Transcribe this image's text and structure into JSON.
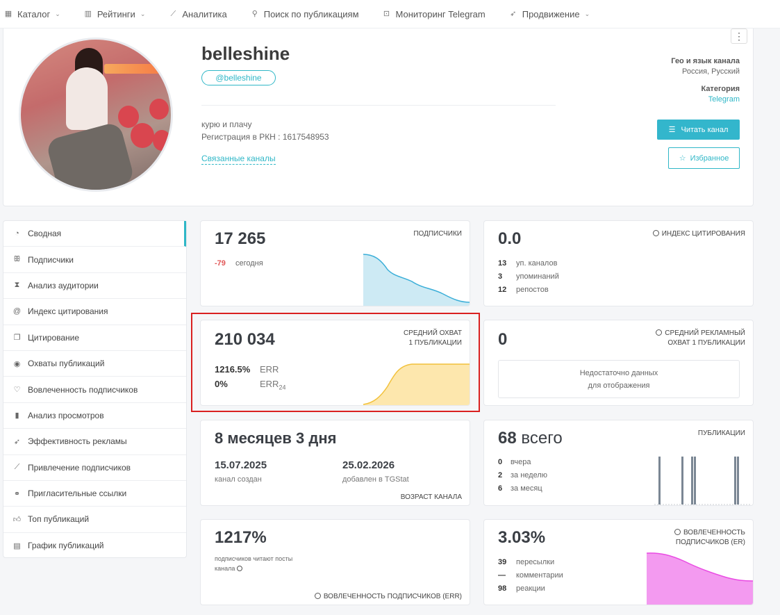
{
  "nav": {
    "items": [
      {
        "icon": "grid-icon",
        "label": "Каталог",
        "dropdown": true
      },
      {
        "icon": "rating-icon",
        "label": "Рейтинги",
        "dropdown": true
      },
      {
        "icon": "chart-icon",
        "label": "Аналитика",
        "dropdown": false
      },
      {
        "icon": "search-icon",
        "label": "Поиск по публикациям",
        "dropdown": false
      },
      {
        "icon": "monitor-icon",
        "label": "Мониторинг Telegram",
        "dropdown": false
      },
      {
        "icon": "rocket-icon",
        "label": "Продвижение",
        "dropdown": true
      }
    ]
  },
  "profile": {
    "title": "belleshine",
    "handle": "@belleshine",
    "description": "курю и плачу",
    "rkn": "Регистрация в РКН : 1617548953",
    "related_link": "Связанные каналы",
    "geo_label": "Гео и язык канала",
    "geo_value": "Россия, Русский",
    "category_label": "Категория",
    "category_value": "Telegram",
    "read_button": "Читать канал",
    "favorite_button": "Избранное"
  },
  "sidebar": {
    "items": [
      {
        "icon": "dashboard-icon",
        "label": "Сводная",
        "active": true
      },
      {
        "icon": "users-icon",
        "label": "Подписчики"
      },
      {
        "icon": "hourglass-icon",
        "label": "Анализ аудитории"
      },
      {
        "icon": "at-icon",
        "label": "Индекс цитирования"
      },
      {
        "icon": "quote-icon",
        "label": "Цитирование"
      },
      {
        "icon": "eye-icon",
        "label": "Охваты публикаций"
      },
      {
        "icon": "engagement-icon",
        "label": "Вовлеченность подписчиков"
      },
      {
        "icon": "bar-chart-icon",
        "label": "Анализ просмотров"
      },
      {
        "icon": "rocket-icon",
        "label": "Эффективность рекламы"
      },
      {
        "icon": "trend-icon",
        "label": "Привлечение подписчиков"
      },
      {
        "icon": "link-icon",
        "label": "Пригласительные ссылки"
      },
      {
        "icon": "thumbs-up-icon",
        "label": "Топ публикаций"
      },
      {
        "icon": "calendar-icon",
        "label": "График публикаций"
      }
    ]
  },
  "cards": {
    "subscribers": {
      "value": "17 265",
      "label": "ПОДПИСЧИКИ",
      "delta": "-79",
      "delta_label": "сегодня"
    },
    "citation": {
      "value": "0.0",
      "label": "ИНДЕКС ЦИТИРОВАНИЯ",
      "rows": [
        {
          "n": "13",
          "t": "уп. каналов"
        },
        {
          "n": "3",
          "t": "упоминаний"
        },
        {
          "n": "12",
          "t": "репостов"
        }
      ]
    },
    "reach": {
      "value": "210 034",
      "label1": "СРЕДНИЙ ОХВАТ",
      "label2": "1 ПУБЛИКАЦИИ",
      "err_value": "1216.5%",
      "err_label": "ERR",
      "err24_value": "0%",
      "err24_label": "ERR",
      "err24_sub": "24"
    },
    "ad_reach": {
      "value": "0",
      "label1": "СРЕДНИЙ РЕКЛАМНЫЙ",
      "label2": "ОХВАТ 1 ПУБЛИКАЦИИ",
      "nodata1": "Недостаточно данных",
      "nodata2": "для отображения"
    },
    "age": {
      "value": "8 месяцев 3 дня",
      "created_date": "15.07.2025",
      "created_label": "канал создан",
      "added_date": "25.02.2026",
      "added_label": "добавлен в TGStat",
      "label": "ВОЗРАСТ КАНАЛА"
    },
    "posts": {
      "value": "68",
      "value_suffix": "всего",
      "label": "ПУБЛИКАЦИИ",
      "rows": [
        {
          "n": "0",
          "t": "вчера"
        },
        {
          "n": "2",
          "t": "за неделю"
        },
        {
          "n": "6",
          "t": "за месяц"
        }
      ]
    },
    "err": {
      "value": "1217%",
      "desc1": "подписчиков читают посты",
      "desc2": "канала",
      "label": "ВОВЛЕЧЕННОСТЬ ПОДПИСЧИКОВ (ERR)"
    },
    "er": {
      "value": "3.03%",
      "label1": "ВОВЛЕЧЕННОСТЬ",
      "label2": "ПОДПИСЧИКОВ (ER)",
      "rows": [
        {
          "n": "39",
          "t": "пересылки"
        },
        {
          "n": "—",
          "t": "комментарии"
        },
        {
          "n": "98",
          "t": "реакции"
        }
      ]
    }
  },
  "colors": {
    "accent": "#2fb7c7",
    "subscribers_area": "#3aaed8",
    "reach_area": "#f2c13b",
    "er_area": "#e94be3",
    "posts_bars": "#7b8794",
    "highlight": "#d92020"
  }
}
